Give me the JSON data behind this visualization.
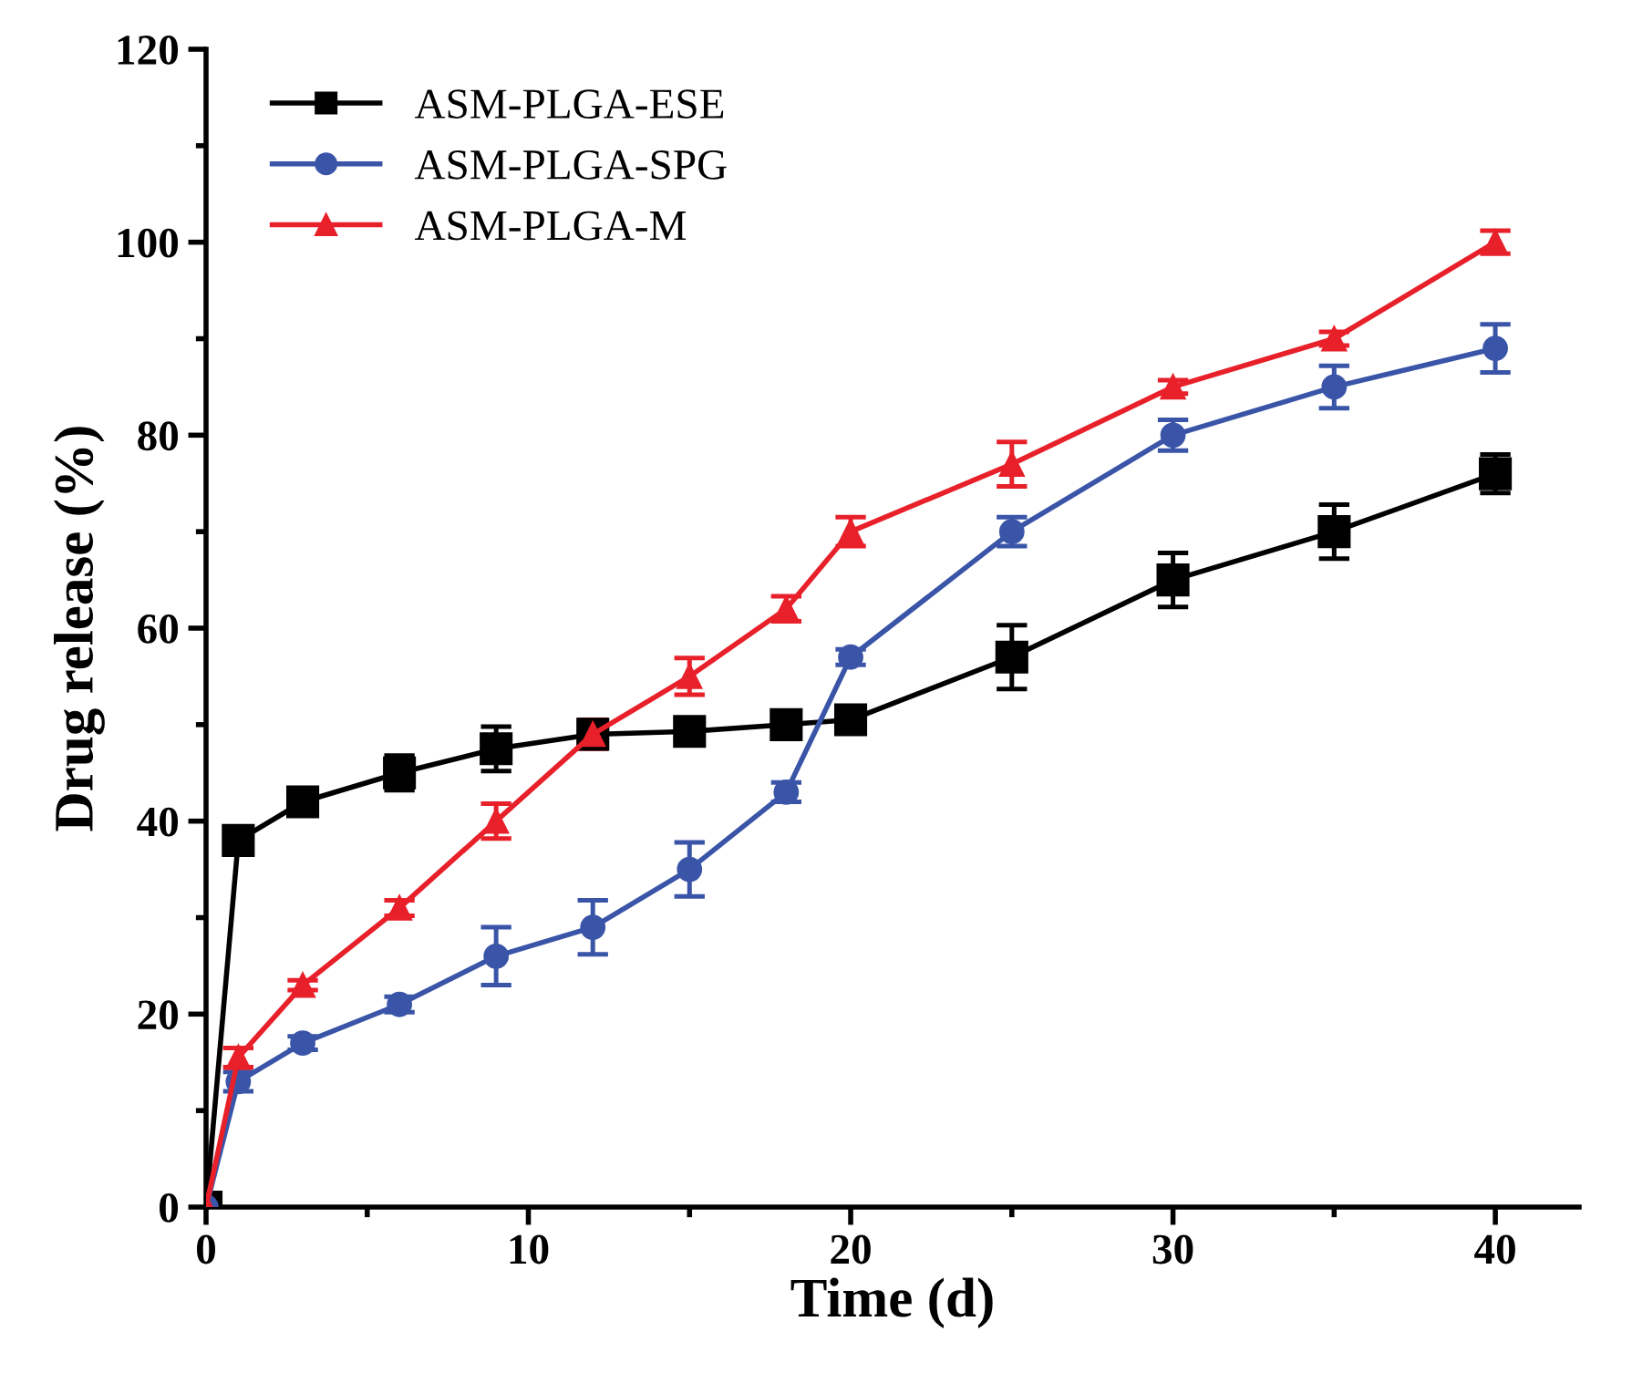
{
  "chart_data": {
    "type": "line",
    "xlabel": "Time (d)",
    "ylabel": "Drug release (%)",
    "x": [
      0,
      1,
      3,
      6,
      9,
      12,
      15,
      18,
      20,
      25,
      30,
      35,
      40
    ],
    "xlim": [
      0,
      42.6
    ],
    "ylim": [
      0,
      120
    ],
    "xticks": [
      0,
      {
        "value": 5,
        "label": null
      },
      10,
      {
        "value": 15,
        "label": null
      },
      20,
      {
        "value": 25,
        "label": null
      },
      30,
      {
        "value": 35,
        "label": null
      },
      40
    ],
    "yticks": [
      0,
      {
        "value": 10,
        "label": null
      },
      20,
      {
        "value": 30,
        "label": null
      },
      40,
      {
        "value": 50,
        "label": null
      },
      60,
      {
        "value": 70,
        "label": null
      },
      80,
      {
        "value": 90,
        "label": null
      },
      100,
      {
        "value": 110,
        "label": null
      },
      120
    ],
    "grid": false,
    "legend": "top left",
    "line_style": "solid",
    "series": [
      {
        "name": "ASM-PLGA-ESE",
        "color": "#000000",
        "marker": "square",
        "values": [
          0,
          38,
          42,
          45,
          47.5,
          49,
          49.3,
          50,
          50.5,
          57,
          65,
          70,
          76
        ],
        "errors": [
          null,
          0.5,
          1,
          1.8,
          2.3,
          1,
          0.7,
          0.8,
          0.8,
          3.3,
          2.8,
          2.8,
          2
        ]
      },
      {
        "name": "ASM-PLGA-SPG",
        "color": "#3a55a8",
        "marker": "circle",
        "values": [
          0,
          13,
          17,
          21,
          26,
          29,
          35,
          43,
          57,
          70,
          80,
          85,
          89
        ],
        "errors": [
          null,
          1,
          0.7,
          0.8,
          3,
          2.8,
          2.8,
          1,
          0.8,
          1.5,
          1.6,
          2.2,
          2.5
        ]
      },
      {
        "name": "ASM-PLGA-M",
        "color": "#e8202a",
        "marker": "triangle",
        "values": [
          0,
          15.5,
          23,
          31,
          40,
          49,
          55,
          62,
          70,
          77,
          85,
          90,
          100
        ],
        "errors": [
          null,
          1,
          0.5,
          0.8,
          1.8,
          1.5,
          1.9,
          1.3,
          1.5,
          2.3,
          0.7,
          0.7,
          1.2
        ]
      }
    ]
  }
}
